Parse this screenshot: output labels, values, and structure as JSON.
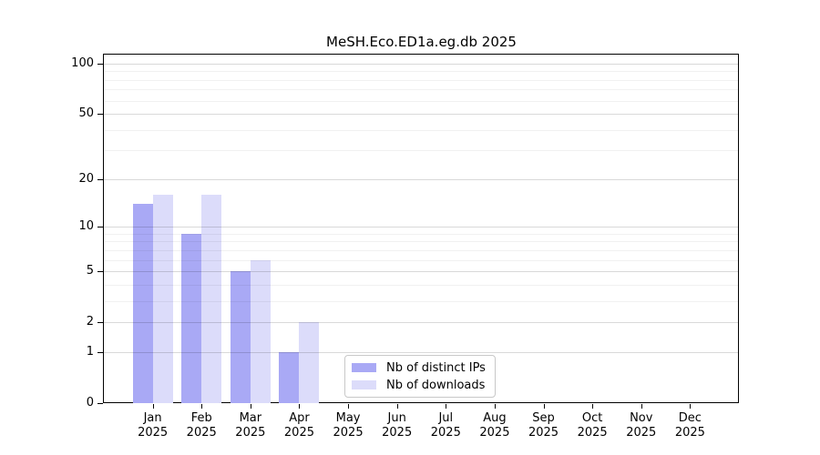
{
  "figure": {
    "background": "#ffffff"
  },
  "chart_data": {
    "type": "bar",
    "title": "MeSH.Eco.ED1a.eg.db 2025",
    "categories": [
      "Jan",
      "Feb",
      "Mar",
      "Apr",
      "May",
      "Jun",
      "Jul",
      "Aug",
      "Sep",
      "Oct",
      "Nov",
      "Dec"
    ],
    "year_label": "2025",
    "series": [
      {
        "name": "Nb of distinct IPs",
        "color": "#a9a9f5",
        "values": [
          14,
          9,
          5,
          1,
          0,
          0,
          0,
          0,
          0,
          0,
          0,
          0
        ]
      },
      {
        "name": "Nb of downloads",
        "color": "#dcdcfa",
        "values": [
          16,
          16,
          6,
          2,
          0,
          0,
          0,
          0,
          0,
          0,
          0,
          0
        ]
      }
    ],
    "xlabel": "",
    "ylabel": "",
    "yscale": "log1p",
    "ylim": [
      0,
      113
    ],
    "yticks": [
      0,
      1,
      2,
      5,
      10,
      20,
      50,
      100
    ],
    "minor_gridlines": [
      3,
      4,
      6,
      7,
      8,
      9,
      30,
      40,
      60,
      70,
      80,
      90
    ],
    "grid": "horizontal",
    "legend_position": "inside lower center",
    "axis_color": "#000000",
    "major_grid_color": "#d9d9d9",
    "minor_grid_color": "#f1f1f1"
  }
}
